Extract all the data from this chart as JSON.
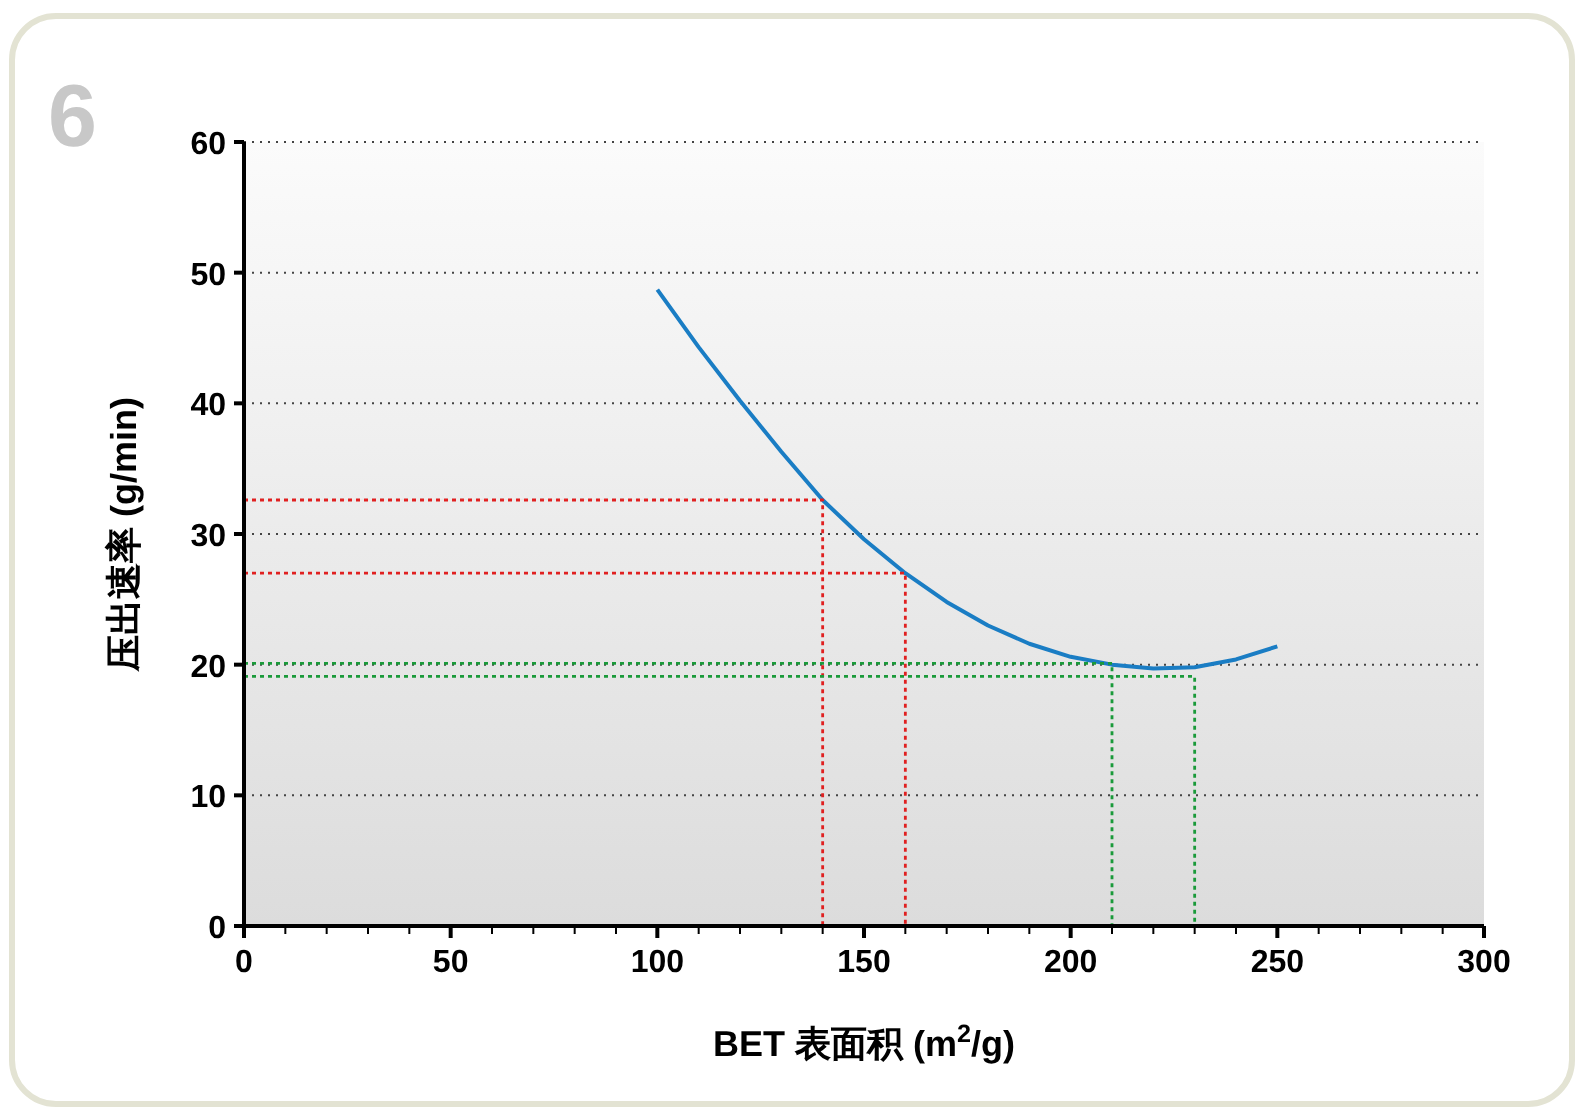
{
  "chart_data": {
    "type": "line",
    "xlabel": "BET 表面积 (m$^{2}$/g)",
    "ylabel": "压出速率 (g/min)",
    "annotations": [
      "6"
    ],
    "xlim": [
      0,
      300
    ],
    "ylim": [
      0,
      60
    ],
    "xticks": [
      0,
      {
        "value": 10,
        "label": null
      },
      {
        "value": 20,
        "label": null
      },
      {
        "value": 30,
        "label": null
      },
      {
        "value": 40,
        "label": null
      },
      50,
      {
        "value": 60,
        "label": null
      },
      {
        "value": 70,
        "label": null
      },
      {
        "value": 80,
        "label": null
      },
      {
        "value": 90,
        "label": null
      },
      100,
      {
        "value": 110,
        "label": null
      },
      {
        "value": 120,
        "label": null
      },
      {
        "value": 130,
        "label": null
      },
      {
        "value": 140,
        "label": null
      },
      150,
      {
        "value": 160,
        "label": null
      },
      {
        "value": 170,
        "label": null
      },
      {
        "value": 180,
        "label": null
      },
      {
        "value": 190,
        "label": null
      },
      200,
      {
        "value": 210,
        "label": null
      },
      {
        "value": 220,
        "label": null
      },
      {
        "value": 230,
        "label": null
      },
      {
        "value": 240,
        "label": null
      },
      250,
      {
        "value": 260,
        "label": null
      },
      {
        "value": 270,
        "label": null
      },
      {
        "value": 280,
        "label": null
      },
      {
        "value": 290,
        "label": null
      },
      300
    ],
    "yticks": [
      0,
      10,
      20,
      30,
      40,
      50,
      60
    ],
    "grid": "y",
    "marker": "none",
    "series": [
      {
        "color": "#1a7dc4",
        "line_style": "solid",
        "x": [
          100,
          110,
          120,
          130,
          140,
          150,
          160,
          170,
          180,
          190,
          200,
          210,
          220,
          230,
          240,
          250
        ],
        "values": [
          48.7,
          44.3,
          40.2,
          36.3,
          32.6,
          29.6,
          27.0,
          24.8,
          23.0,
          21.6,
          20.6,
          20.0,
          19.7,
          19.8,
          20.4,
          21.4
        ]
      },
      {
        "color": "#e02020",
        "line_style": "dotted",
        "x": [
          0,
          140,
          140
        ],
        "values": [
          32.6,
          32.6,
          0
        ]
      },
      {
        "color": "#e02020",
        "line_style": "dotted",
        "x": [
          0,
          160,
          160
        ],
        "values": [
          27.0,
          27.0,
          0
        ]
      },
      {
        "color": "#1a9a3a",
        "line_style": "dotted",
        "x": [
          0,
          210,
          210
        ],
        "values": [
          20.1,
          20.1,
          0
        ]
      },
      {
        "color": "#1a9a3a",
        "line_style": "dotted",
        "x": [
          0,
          230,
          230
        ],
        "values": [
          19.1,
          19.1,
          0
        ]
      }
    ]
  }
}
